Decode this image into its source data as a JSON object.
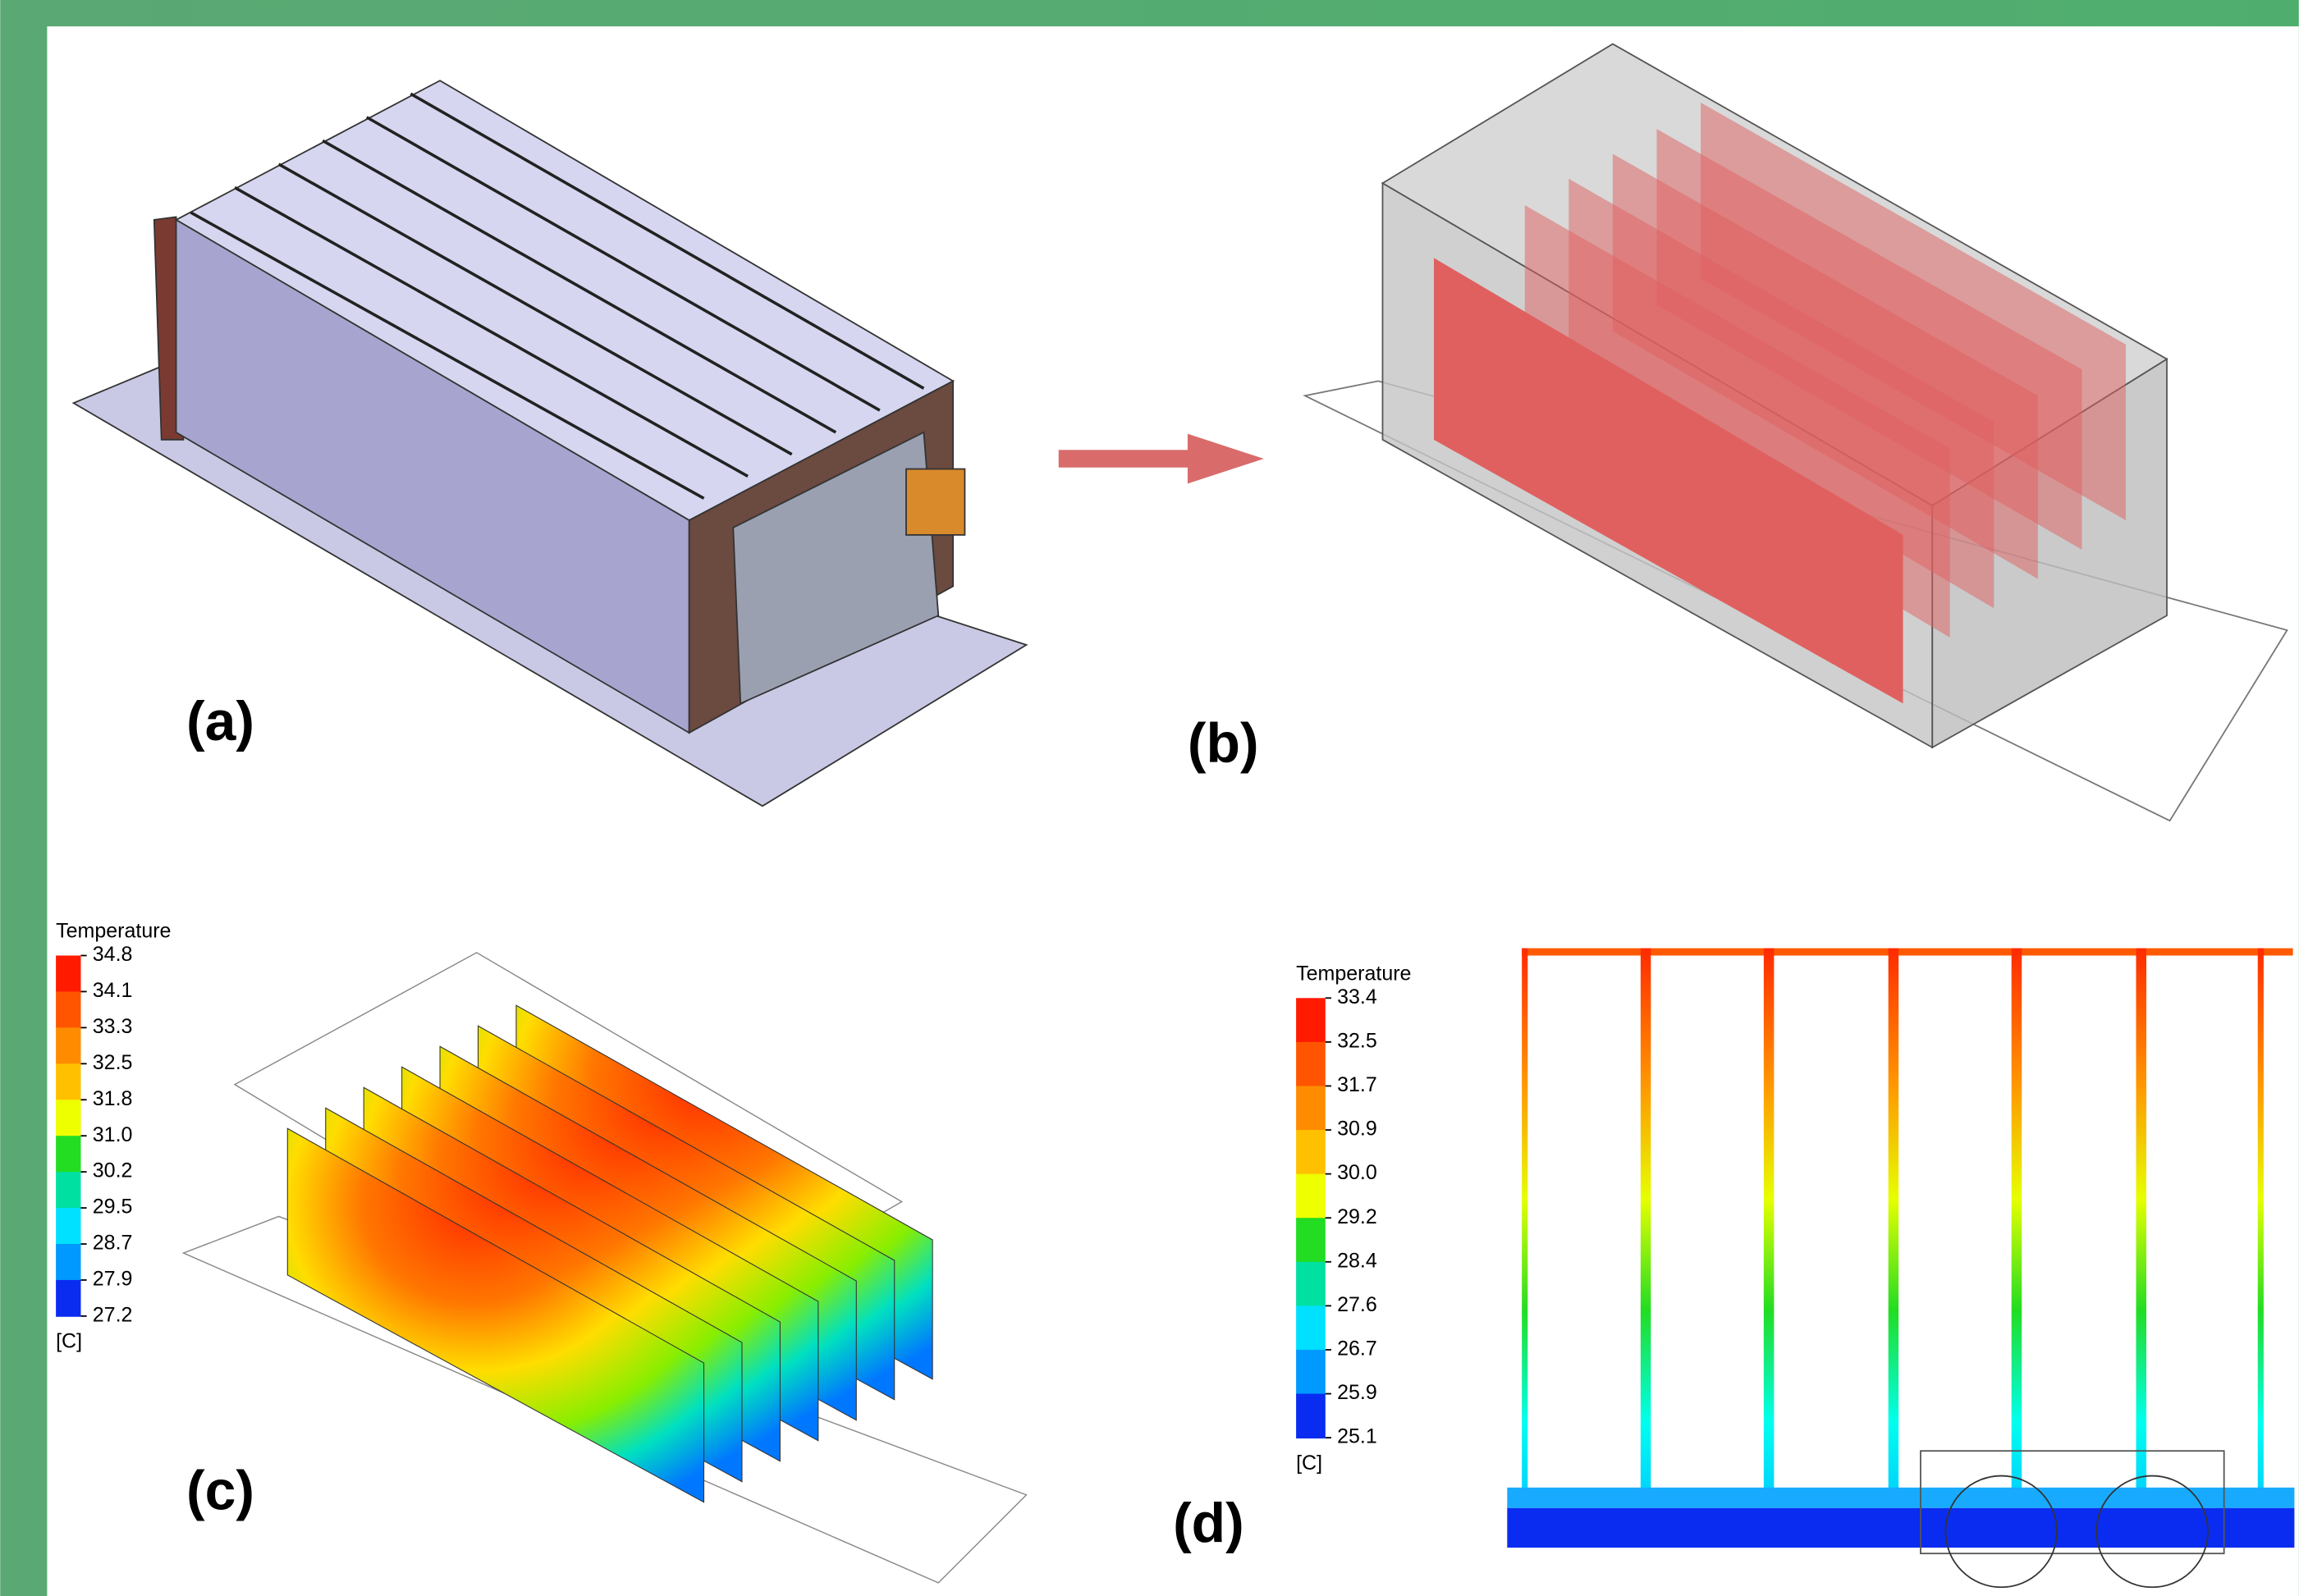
{
  "panels": [
    {
      "label": "(a)"
    },
    {
      "label": "(b)"
    },
    {
      "label": "(c)",
      "legend": {
        "title": "Temperature",
        "unit": "[C]",
        "ticks": [
          "34.8",
          "34.1",
          "33.3",
          "32.5",
          "31.8",
          "31.0",
          "30.2",
          "29.5",
          "28.7",
          "27.9",
          "27.2"
        ]
      }
    },
    {
      "label": "(d)",
      "legend": {
        "title": "Temperature",
        "unit": "[C]",
        "ticks": [
          "33.4",
          "32.5",
          "31.7",
          "30.9",
          "30.0",
          "29.2",
          "28.4",
          "27.6",
          "26.7",
          "25.9",
          "25.1"
        ]
      }
    }
  ]
}
